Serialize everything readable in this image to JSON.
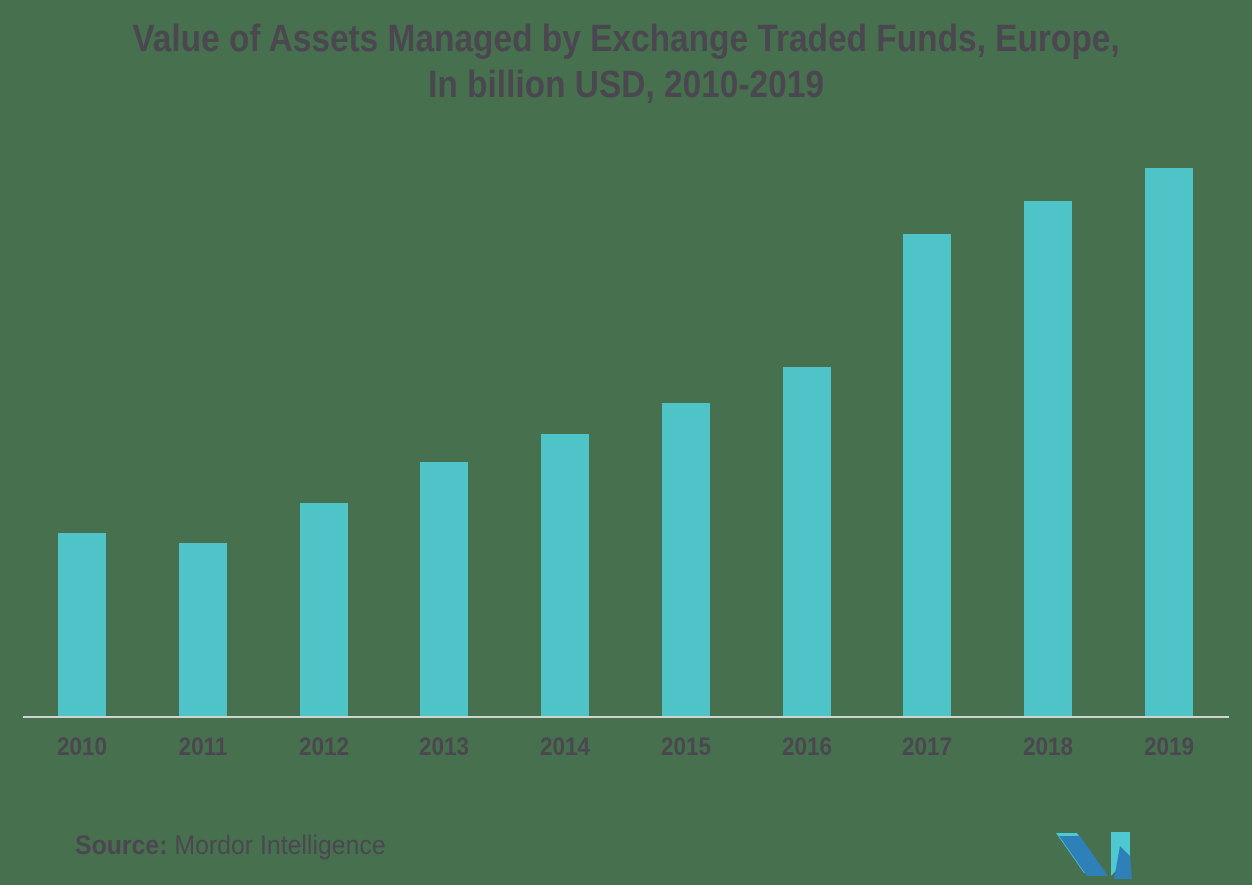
{
  "title": {
    "line1": "Value of Assets Managed by Exchange Traded Funds, Europe,",
    "line2": "In billion USD, 2010-2019"
  },
  "source": {
    "label": "Source:",
    "name": " Mordor Intelligence"
  },
  "logo": {
    "name": "mordor-intelligence-logo"
  },
  "colors": {
    "background": "#47704E",
    "bar": "#4FC4C8",
    "text": "#4B4751",
    "axis": "#CFD6D2",
    "logo_teal": "#4FC9D1",
    "logo_blue": "#2E80B9"
  },
  "chart_data": {
    "type": "bar",
    "title": "Value of Assets Managed by Exchange Traded Funds, Europe, In billion USD, 2010-2019",
    "categories": [
      "2010",
      "2011",
      "2012",
      "2013",
      "2014",
      "2015",
      "2016",
      "2017",
      "2018",
      "2019"
    ],
    "values": [
      285,
      270,
      332,
      396,
      440,
      489,
      545,
      752,
      804,
      855
    ],
    "xlabel": "",
    "ylabel": "",
    "ylim": [
      0,
      890
    ],
    "grid": false,
    "legend": false,
    "y_axis_visible": false,
    "note": "No y-axis tick labels shown in the figure; values are estimated from bar heights in billion USD"
  }
}
